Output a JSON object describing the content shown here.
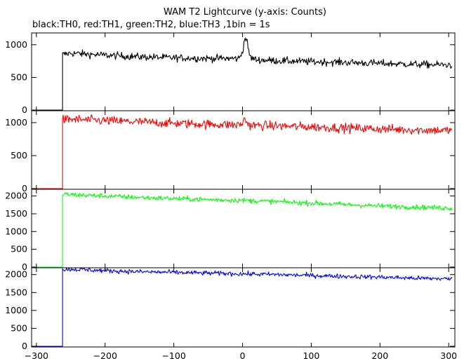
{
  "chart_data": {
    "type": "line",
    "title": "WAM T2 Lightcurve (y-axis: Counts)",
    "subtitle": "black:TH0, red:TH1, green:TH2, blue:TH3 ,1bin = 1s",
    "xlim": [
      -307,
      309
    ],
    "x_ticks": [
      -300,
      -200,
      -100,
      0,
      100,
      200,
      300
    ],
    "x_tick_labels": [
      "−300",
      "−200",
      "−100",
      "0",
      "100",
      "200",
      "300"
    ],
    "grid": false,
    "legend": "none",
    "panels": [
      {
        "series": "TH0",
        "color": "#000000",
        "ylim": [
          -10,
          1180
        ],
        "y_ticks": [
          0,
          500,
          1000
        ],
        "y_tick_labels": [
          "0",
          "500",
          "1000"
        ],
        "onset_x": -262,
        "x_end": 305,
        "pre_onset_level": 0,
        "profile": [
          [
            -262,
            850
          ],
          [
            -250,
            870
          ],
          [
            -200,
            840
          ],
          [
            -150,
            815
          ],
          [
            -100,
            800
          ],
          [
            -50,
            790
          ],
          [
            -5,
            790
          ],
          [
            0,
            900
          ],
          [
            2,
            1020
          ],
          [
            4,
            1110
          ],
          [
            6,
            1080
          ],
          [
            8,
            940
          ],
          [
            12,
            800
          ],
          [
            20,
            770
          ],
          [
            50,
            755
          ],
          [
            100,
            740
          ],
          [
            150,
            730
          ],
          [
            200,
            715
          ],
          [
            250,
            700
          ],
          [
            305,
            690
          ]
        ],
        "noise": 28
      },
      {
        "series": "TH1",
        "color": "#ff0000",
        "ylim": [
          -10,
          1180
        ],
        "y_ticks": [
          0,
          500,
          1000
        ],
        "y_tick_labels": [
          "0",
          "500",
          "1000"
        ],
        "onset_x": -262,
        "x_end": 305,
        "pre_onset_level": 0,
        "profile": [
          [
            -262,
            1040
          ],
          [
            -250,
            1050
          ],
          [
            -200,
            1030
          ],
          [
            -150,
            1010
          ],
          [
            -100,
            990
          ],
          [
            -50,
            975
          ],
          [
            -5,
            965
          ],
          [
            0,
            990
          ],
          [
            3,
            1060
          ],
          [
            6,
            1010
          ],
          [
            10,
            960
          ],
          [
            50,
            950
          ],
          [
            100,
            935
          ],
          [
            150,
            920
          ],
          [
            200,
            905
          ],
          [
            250,
            890
          ],
          [
            305,
            880
          ]
        ],
        "noise": 35
      },
      {
        "series": "TH2",
        "color": "#00ff00",
        "ylim": [
          -20,
          2190
        ],
        "y_ticks": [
          0,
          500,
          1000,
          1500,
          2000
        ],
        "y_tick_labels": [
          "0",
          "500",
          "1000",
          "1500",
          "2000"
        ],
        "onset_x": -262,
        "x_end": 305,
        "pre_onset_level": 0,
        "profile": [
          [
            -262,
            2050
          ],
          [
            -250,
            2040
          ],
          [
            -200,
            2000
          ],
          [
            -150,
            1960
          ],
          [
            -100,
            1930
          ],
          [
            -50,
            1900
          ],
          [
            0,
            1880
          ],
          [
            50,
            1840
          ],
          [
            100,
            1800
          ],
          [
            150,
            1760
          ],
          [
            200,
            1720
          ],
          [
            250,
            1690
          ],
          [
            305,
            1660
          ]
        ],
        "noise": 35
      },
      {
        "series": "TH3",
        "color": "#0000ff",
        "ylim": [
          -20,
          2190
        ],
        "y_ticks": [
          0,
          500,
          1000,
          1500,
          2000
        ],
        "y_tick_labels": [
          "0",
          "500",
          "1000",
          "1500",
          "2000"
        ],
        "onset_x": -262,
        "x_end": 305,
        "pre_onset_level": 0,
        "profile": [
          [
            -262,
            2140
          ],
          [
            -250,
            2150
          ],
          [
            -200,
            2110
          ],
          [
            -150,
            2080
          ],
          [
            -100,
            2060
          ],
          [
            -50,
            2040
          ],
          [
            0,
            2020
          ],
          [
            50,
            2000
          ],
          [
            100,
            1975
          ],
          [
            150,
            1950
          ],
          [
            200,
            1930
          ],
          [
            250,
            1900
          ],
          [
            305,
            1880
          ]
        ],
        "noise": 32
      }
    ]
  }
}
